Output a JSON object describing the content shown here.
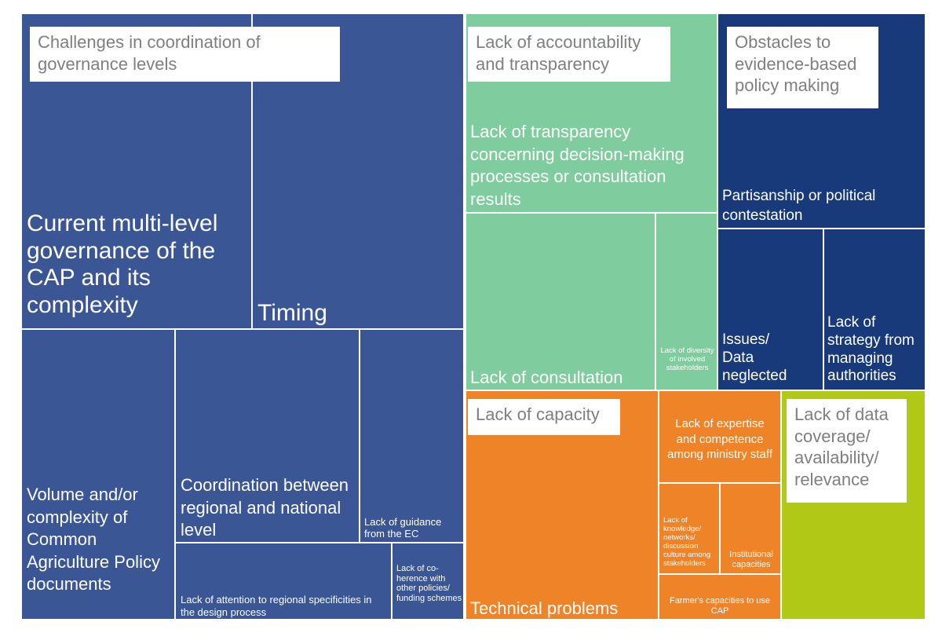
{
  "chart_data": {
    "type": "treemap",
    "colors": {
      "coordination": "#3a5694",
      "accountability": "#7fcc9e",
      "evidence": "#183a7a",
      "capacity": "#ef8328",
      "data": "#b0c917"
    },
    "groups": [
      {
        "name": "Challenges in coordination of governance levels",
        "items": [
          "Current multi-level governance of the CAP and its complexity",
          "Timing",
          "Volume and/or complexity of Common Agriculture Policy documents",
          "Coordination between regional and national level",
          "Lack of guidance from the EC",
          "Lack of attention to regional specificities in the design process",
          "Lack of co-herence with other policies/ funding schemes"
        ]
      },
      {
        "name": "Lack of accountability and transparency",
        "items": [
          "Lack of transparency concerning decision-making processes or consultation results",
          "Lack of consultation",
          "Lack of diversity of involved stakeholders"
        ]
      },
      {
        "name": "Obstacles to evidence-based policy making",
        "items": [
          "Partisanship  or political contestation",
          "Issues/ Data neglected",
          "Lack of strategy from managing authorities"
        ]
      },
      {
        "name": "Lack of capacity",
        "items": [
          "Technical problems",
          "Lack of expertise and competence among ministry staff",
          "Lack of knowledge/ networks/ discussion culture among stakeholders",
          "Institutional capacities",
          "Farmer's capacities to use CAP"
        ]
      },
      {
        "name": "Lack of data coverage/ availability/ relevance",
        "items": []
      }
    ]
  }
}
